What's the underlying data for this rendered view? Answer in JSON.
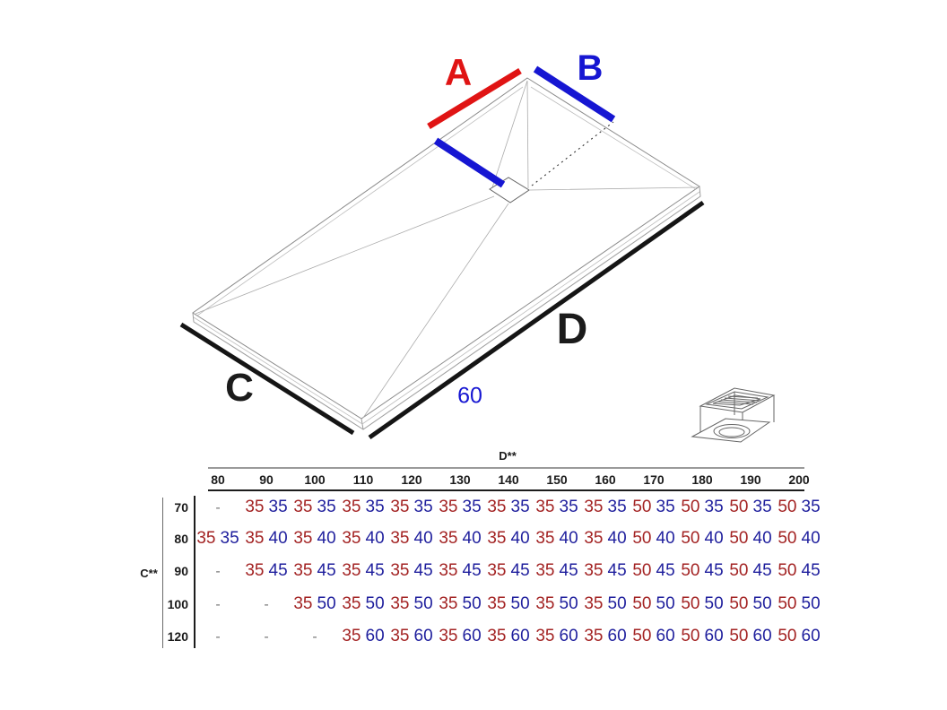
{
  "diagram": {
    "label_a": "A",
    "label_b": "B",
    "label_c": "C",
    "label_d": "D",
    "dim_60": "60",
    "colors": {
      "bright_red": "#e01414",
      "bright_blue": "#1616d2",
      "ink": "#1b1b1b"
    }
  },
  "table": {
    "col_axis_label": "D**",
    "row_axis_label": "C**",
    "value_colors": {
      "first": "#a32323",
      "second": "#1f1f9d"
    },
    "columns": [
      "80",
      "90",
      "100",
      "110",
      "120",
      "130",
      "140",
      "150",
      "160",
      "170",
      "180",
      "190",
      "200"
    ],
    "rows": [
      {
        "label": "70",
        "cells": [
          "-",
          [
            "35",
            "35"
          ],
          [
            "35",
            "35"
          ],
          [
            "35",
            "35"
          ],
          [
            "35",
            "35"
          ],
          [
            "35",
            "35"
          ],
          [
            "35",
            "35"
          ],
          [
            "35",
            "35"
          ],
          [
            "35",
            "35"
          ],
          [
            "50",
            "35"
          ],
          [
            "50",
            "35"
          ],
          [
            "50",
            "35"
          ],
          [
            "50",
            "35"
          ]
        ]
      },
      {
        "label": "80",
        "cells": [
          [
            "35",
            "35"
          ],
          [
            "35",
            "40"
          ],
          [
            "35",
            "40"
          ],
          [
            "35",
            "40"
          ],
          [
            "35",
            "40"
          ],
          [
            "35",
            "40"
          ],
          [
            "35",
            "40"
          ],
          [
            "35",
            "40"
          ],
          [
            "35",
            "40"
          ],
          [
            "50",
            "40"
          ],
          [
            "50",
            "40"
          ],
          [
            "50",
            "40"
          ],
          [
            "50",
            "40"
          ]
        ]
      },
      {
        "label": "90",
        "cells": [
          "-",
          [
            "35",
            "45"
          ],
          [
            "35",
            "45"
          ],
          [
            "35",
            "45"
          ],
          [
            "35",
            "45"
          ],
          [
            "35",
            "45"
          ],
          [
            "35",
            "45"
          ],
          [
            "35",
            "45"
          ],
          [
            "35",
            "45"
          ],
          [
            "50",
            "45"
          ],
          [
            "50",
            "45"
          ],
          [
            "50",
            "45"
          ],
          [
            "50",
            "45"
          ]
        ]
      },
      {
        "label": "100",
        "cells": [
          "-",
          "-",
          [
            "35",
            "50"
          ],
          [
            "35",
            "50"
          ],
          [
            "35",
            "50"
          ],
          [
            "35",
            "50"
          ],
          [
            "35",
            "50"
          ],
          [
            "35",
            "50"
          ],
          [
            "35",
            "50"
          ],
          [
            "50",
            "50"
          ],
          [
            "50",
            "50"
          ],
          [
            "50",
            "50"
          ],
          [
            "50",
            "50"
          ]
        ]
      },
      {
        "label": "120",
        "cells": [
          "-",
          "-",
          "-",
          [
            "35",
            "60"
          ],
          [
            "35",
            "60"
          ],
          [
            "35",
            "60"
          ],
          [
            "35",
            "60"
          ],
          [
            "35",
            "60"
          ],
          [
            "35",
            "60"
          ],
          [
            "50",
            "60"
          ],
          [
            "50",
            "60"
          ],
          [
            "50",
            "60"
          ],
          [
            "50",
            "60"
          ]
        ]
      }
    ]
  }
}
